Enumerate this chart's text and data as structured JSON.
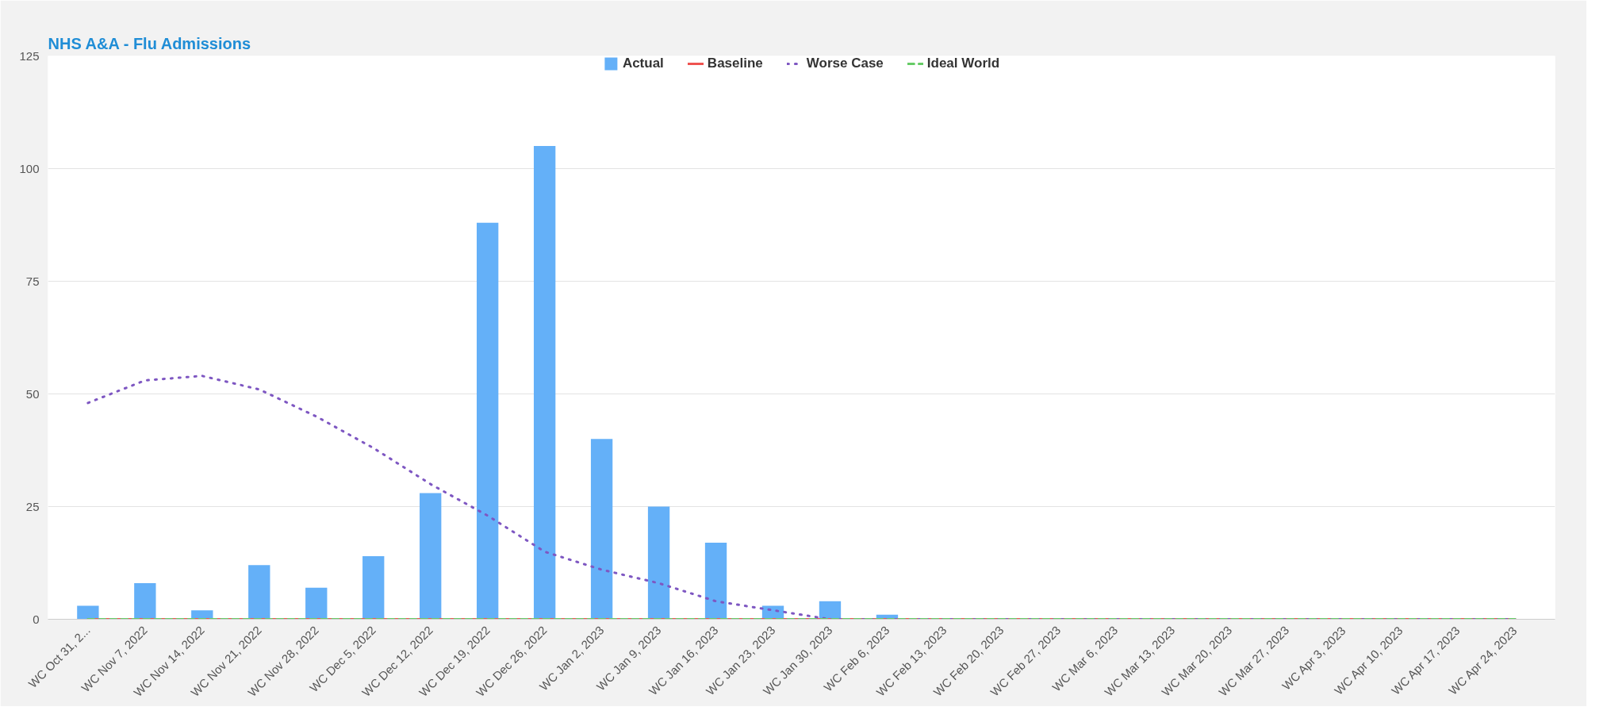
{
  "chart_data": {
    "type": "bar",
    "title": "NHS A&A - Flu Admissions",
    "categories": [
      "WC Oct 31, 2...",
      "WC Nov 7, 2022",
      "WC Nov 14, 2022",
      "WC Nov 21, 2022",
      "WC Nov 28, 2022",
      "WC Dec 5, 2022",
      "WC Dec 12, 2022",
      "WC Dec 19, 2022",
      "WC Dec 26, 2022",
      "WC Jan 2, 2023",
      "WC Jan 9, 2023",
      "WC Jan 16, 2023",
      "WC Jan 23, 2023",
      "WC Jan 30, 2023",
      "WC Feb 6, 2023",
      "WC Feb 13, 2023",
      "WC Feb 20, 2023",
      "WC Feb 27, 2023",
      "WC Mar 6, 2023",
      "WC Mar 13, 2023",
      "WC Mar 20, 2023",
      "WC Mar 27, 2023",
      "WC Apr 3, 2023",
      "WC Apr 10, 2023",
      "WC Apr 17, 2023",
      "WC Apr 24, 2023"
    ],
    "series": [
      {
        "name": "Actual",
        "color": "#64b0f8",
        "values": [
          3,
          8,
          2,
          12,
          7,
          14,
          28,
          88,
          105,
          40,
          25,
          17,
          3,
          4,
          1,
          0,
          0,
          0,
          0,
          0,
          0,
          0,
          0,
          0,
          0,
          0
        ]
      },
      {
        "name": "Baseline",
        "type": "line",
        "color": "#ef5350",
        "line_style": "solid",
        "values": [
          0,
          0,
          0,
          0,
          0,
          0,
          0,
          0,
          0,
          0,
          0,
          0,
          0,
          0,
          0,
          0,
          0,
          0,
          0,
          0,
          0,
          0,
          0,
          0,
          0,
          0
        ]
      },
      {
        "name": "Worse Case",
        "type": "line",
        "color": "#7e57c2",
        "line_style": "dotted",
        "values": [
          48,
          53,
          54,
          51,
          45,
          38,
          30,
          23,
          15,
          11,
          8,
          4,
          2,
          0,
          0,
          0,
          0,
          0,
          0,
          0,
          0,
          0,
          0,
          0,
          0,
          0
        ]
      },
      {
        "name": "Ideal World",
        "type": "line",
        "color": "#66cc66",
        "line_style": "dashed",
        "values": [
          0,
          0,
          0,
          0,
          0,
          0,
          0,
          0,
          0,
          0,
          0,
          0,
          0,
          0,
          0,
          0,
          0,
          0,
          0,
          0,
          0,
          0,
          0,
          0,
          0,
          0
        ]
      }
    ],
    "ylim": [
      0,
      125
    ],
    "yticks": [
      0,
      25,
      50,
      75,
      100,
      125
    ],
    "grid": "y",
    "legend": "top"
  }
}
